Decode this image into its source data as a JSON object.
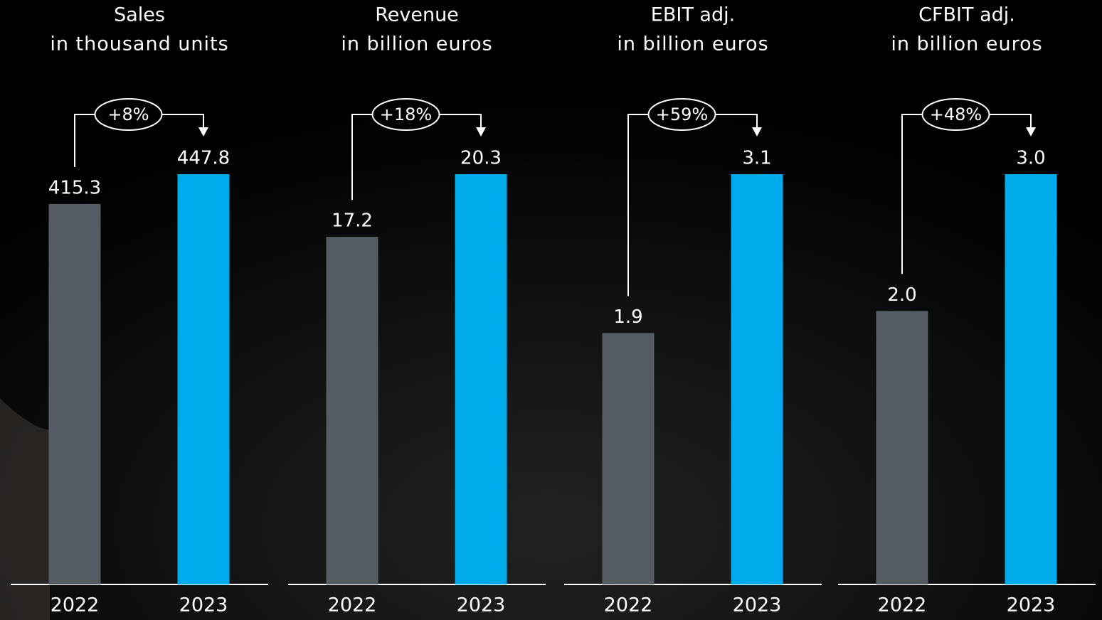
{
  "chart_data": [
    {
      "type": "bar",
      "title": "Sales",
      "subtitle": "in thousand units",
      "categories": [
        "2022",
        "2023"
      ],
      "values": [
        415.3,
        447.8
      ],
      "colors": [
        "#565c63",
        "#00abeb"
      ],
      "annotation": "+8%"
    },
    {
      "type": "bar",
      "title": "Revenue",
      "subtitle": "in billion euros",
      "categories": [
        "2022",
        "2023"
      ],
      "values": [
        17.2,
        20.3
      ],
      "colors": [
        "#565c63",
        "#00abeb"
      ],
      "annotation": "+18%"
    },
    {
      "type": "bar",
      "title": "EBIT adj.",
      "subtitle": "in billion euros",
      "categories": [
        "2022",
        "2023"
      ],
      "values": [
        1.9,
        3.1
      ],
      "colors": [
        "#565c63",
        "#00abeb"
      ],
      "annotation": "+59%"
    },
    {
      "type": "bar",
      "title": "CFBIT adj.",
      "subtitle": "in billion euros",
      "categories": [
        "2022",
        "2023"
      ],
      "values": [
        2,
        3
      ],
      "value_labels": [
        "2.0",
        "3.0"
      ],
      "colors": [
        "#565c63",
        "#00abeb"
      ],
      "annotation": "+48%"
    }
  ]
}
